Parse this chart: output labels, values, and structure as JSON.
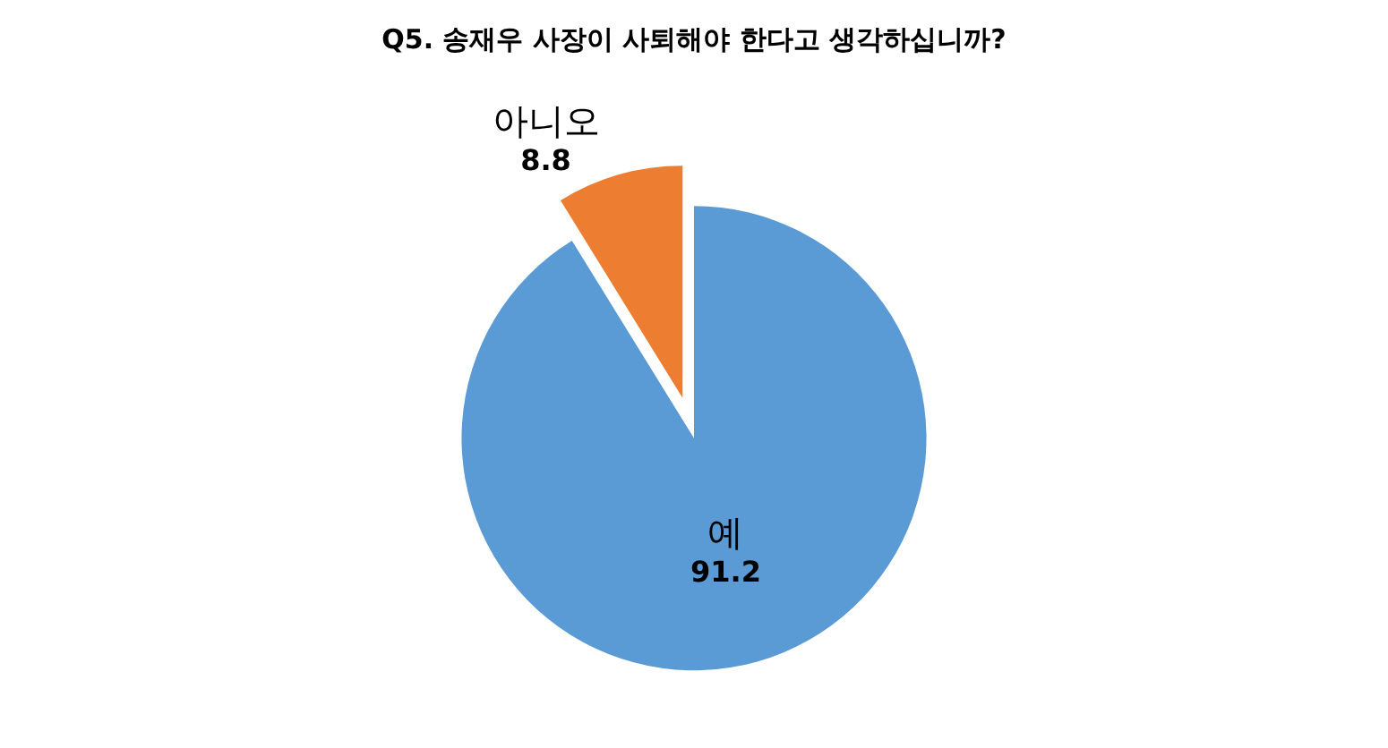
{
  "chart_data": {
    "type": "pie",
    "title": "Q5. 송재우 사장이 사퇴해야 한다고 생각하십니까?",
    "categories": [
      "예",
      "아니오"
    ],
    "values": [
      91.2,
      8.8
    ],
    "colors": [
      "#5b9bd5",
      "#ed7d31"
    ],
    "data_labels": true,
    "legend": false
  }
}
